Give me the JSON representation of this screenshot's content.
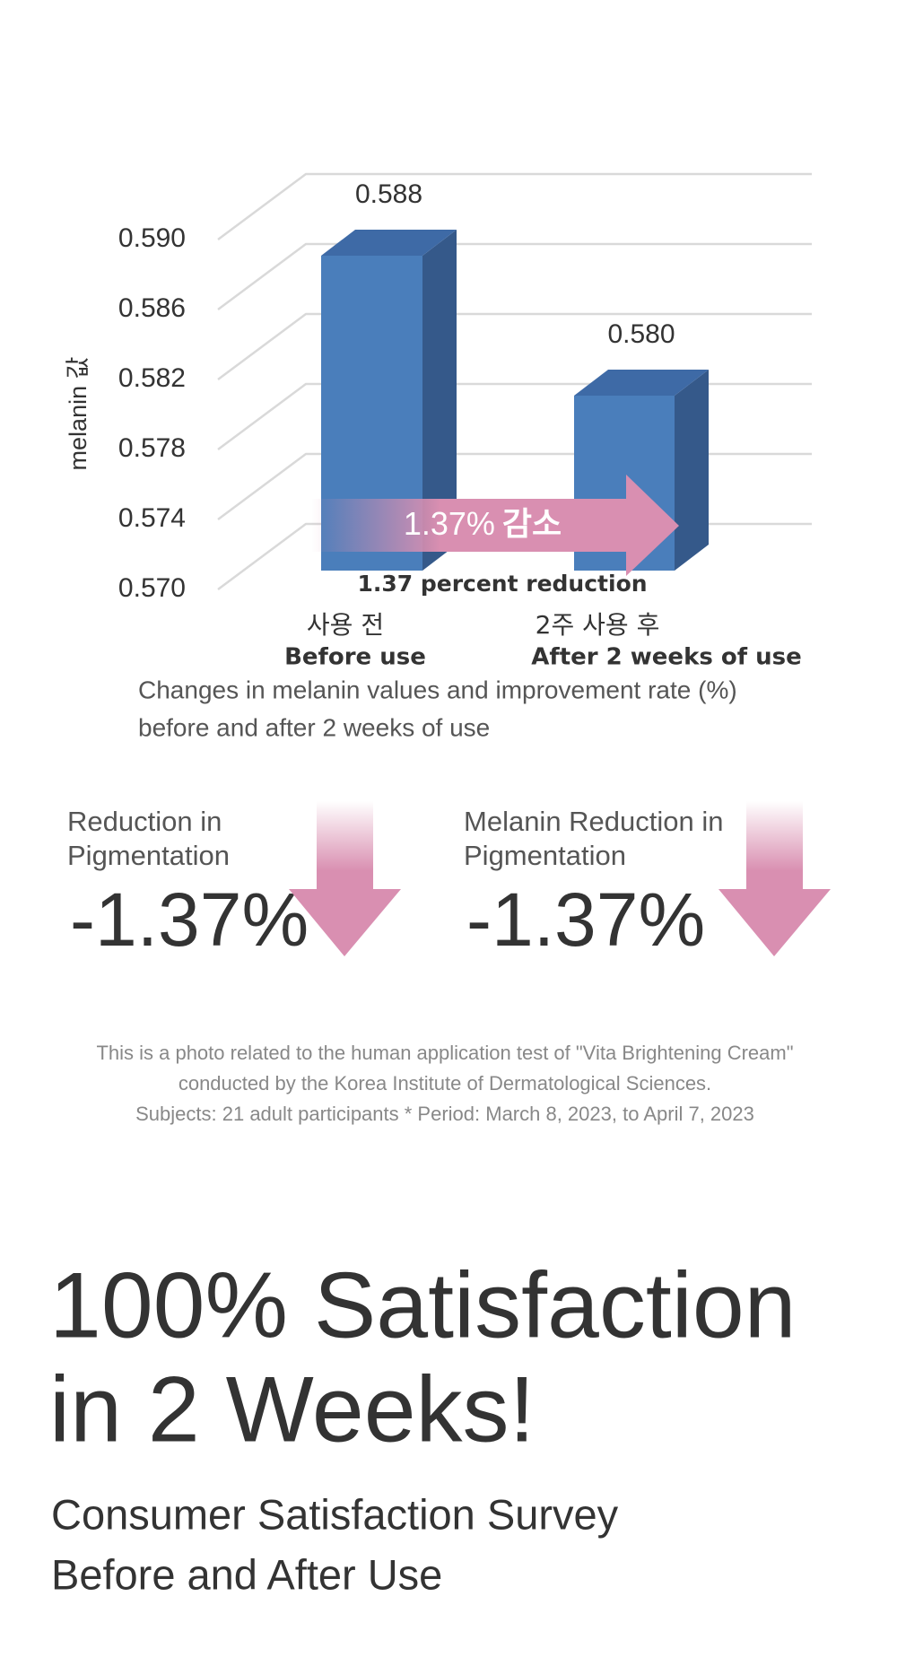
{
  "chart_data": {
    "type": "bar",
    "y_axis_label": "melanin 값",
    "categories": [
      "사용 전",
      "2주 사용 후"
    ],
    "categories_en": [
      "Before use",
      "After 2 weeks of use"
    ],
    "values": [
      0.588,
      0.58
    ],
    "value_labels": [
      "0.588",
      "0.580"
    ],
    "color": "#4a7ebb",
    "ylim": [
      0.57,
      0.59
    ],
    "yticks": [
      {
        "value": 0.57,
        "label": "0.570"
      },
      0.574,
      0.578,
      0.582,
      0.586,
      {
        "value": 0.59,
        "label": "0.590"
      }
    ],
    "grid": true,
    "annotation": [
      "1.37%",
      "감소"
    ],
    "annotation_en": "1.37 percent reduction",
    "caption": [
      "Changes in melanin values and improvement rate (%)",
      "before and after 2 weeks of use"
    ]
  },
  "stats": [
    {
      "label": [
        "Reduction in",
        "Pigmentation"
      ],
      "value": "-1.37%"
    },
    {
      "label": [
        "Melanin Reduction in",
        "Pigmentation"
      ],
      "value": "-1.37%"
    }
  ],
  "footnote": [
    "This is a photo related to the human application test of \"Vita Brightening Cream\"",
    "conducted by the Korea Institute of Dermatological Sciences.",
    "Subjects: 21 adult participants * Period: March 8, 2023, to April 7, 2023"
  ],
  "headline": [
    "100% Satisfaction",
    "in 2 Weeks!"
  ],
  "subheadline": [
    "Consumer Satisfaction Survey",
    "Before and After Use"
  ]
}
